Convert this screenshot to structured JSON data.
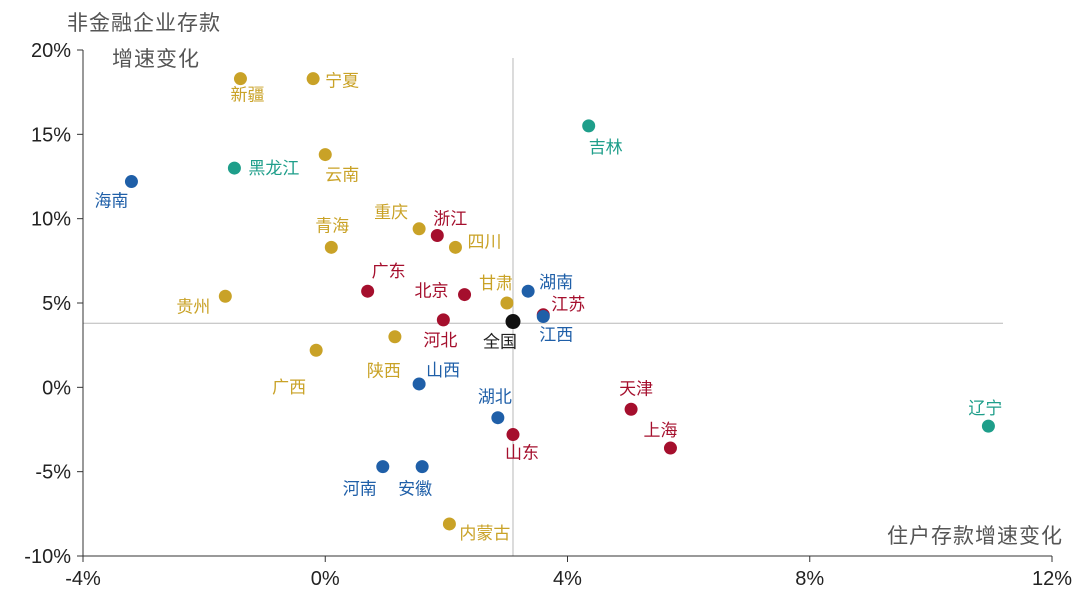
{
  "chart_data": {
    "type": "scatter",
    "ylabel_line1": "非金融企业存款",
    "ylabel_line2": "增速变化",
    "xlabel": "住户存款增速变化",
    "xlim": [
      -4,
      12
    ],
    "ylim": [
      -10,
      20
    ],
    "x_ticks": [
      {
        "v": -4,
        "label": "-4%"
      },
      {
        "v": 0,
        "label": "0%"
      },
      {
        "v": 4,
        "label": "4%"
      },
      {
        "v": 8,
        "label": "8%"
      },
      {
        "v": 12,
        "label": "12%"
      }
    ],
    "y_ticks": [
      {
        "v": 20,
        "label": "20%"
      },
      {
        "v": 15,
        "label": "15%"
      },
      {
        "v": 10,
        "label": "10%"
      },
      {
        "v": 5,
        "label": "5%"
      },
      {
        "v": 0,
        "label": "0%"
      },
      {
        "v": -5,
        "label": "-5%"
      },
      {
        "v": -10,
        "label": "-10%"
      }
    ],
    "reference_lines": {
      "x": 3.1,
      "y": 3.8
    },
    "colors": {
      "gold": "#C9A227",
      "red": "#A50F2D",
      "blue": "#1F5FA8",
      "teal": "#1E9E8A",
      "black": "#111111"
    },
    "points": [
      {
        "name": "新疆",
        "x": -1.4,
        "y": 18.3,
        "color": "gold"
      },
      {
        "name": "宁夏",
        "x": -0.2,
        "y": 18.3,
        "color": "gold"
      },
      {
        "name": "吉林",
        "x": 4.35,
        "y": 15.5,
        "color": "teal"
      },
      {
        "name": "云南",
        "x": 0.0,
        "y": 13.8,
        "color": "gold"
      },
      {
        "name": "黑龙江",
        "x": -1.5,
        "y": 13.0,
        "color": "teal"
      },
      {
        "name": "海南",
        "x": -3.2,
        "y": 12.2,
        "color": "blue"
      },
      {
        "name": "重庆",
        "x": 1.55,
        "y": 9.4,
        "color": "gold"
      },
      {
        "name": "浙江",
        "x": 1.85,
        "y": 9.0,
        "color": "red"
      },
      {
        "name": "四川",
        "x": 2.15,
        "y": 8.3,
        "color": "gold"
      },
      {
        "name": "青海",
        "x": 0.1,
        "y": 8.3,
        "color": "gold"
      },
      {
        "name": "广东",
        "x": 0.7,
        "y": 5.7,
        "color": "red"
      },
      {
        "name": "湖南",
        "x": 3.35,
        "y": 5.7,
        "color": "blue"
      },
      {
        "name": "北京",
        "x": 2.3,
        "y": 5.5,
        "color": "red"
      },
      {
        "name": "甘肃",
        "x": 3.0,
        "y": 5.0,
        "color": "gold"
      },
      {
        "name": "贵州",
        "x": -1.65,
        "y": 5.4,
        "color": "gold"
      },
      {
        "name": "江苏",
        "x": 3.6,
        "y": 4.3,
        "color": "red"
      },
      {
        "name": "江西",
        "x": 3.6,
        "y": 4.2,
        "color": "blue"
      },
      {
        "name": "全国",
        "x": 3.1,
        "y": 3.9,
        "color": "black"
      },
      {
        "name": "河北",
        "x": 1.95,
        "y": 4.0,
        "color": "red"
      },
      {
        "name": "陕西",
        "x": 1.15,
        "y": 3.0,
        "color": "gold"
      },
      {
        "name": "广西",
        "x": -0.15,
        "y": 2.2,
        "color": "gold"
      },
      {
        "name": "山西",
        "x": 1.55,
        "y": 0.2,
        "color": "blue"
      },
      {
        "name": "天津",
        "x": 5.05,
        "y": -1.3,
        "color": "red"
      },
      {
        "name": "湖北",
        "x": 2.85,
        "y": -1.8,
        "color": "blue"
      },
      {
        "name": "辽宁",
        "x": 10.95,
        "y": -2.3,
        "color": "teal"
      },
      {
        "name": "山东",
        "x": 3.1,
        "y": -2.8,
        "color": "red"
      },
      {
        "name": "上海",
        "x": 5.7,
        "y": -3.6,
        "color": "red"
      },
      {
        "name": "河南",
        "x": 0.95,
        "y": -4.7,
        "color": "blue"
      },
      {
        "name": "安徽",
        "x": 1.6,
        "y": -4.7,
        "color": "blue"
      },
      {
        "name": "内蒙古",
        "x": 2.05,
        "y": -8.1,
        "color": "gold"
      }
    ]
  }
}
